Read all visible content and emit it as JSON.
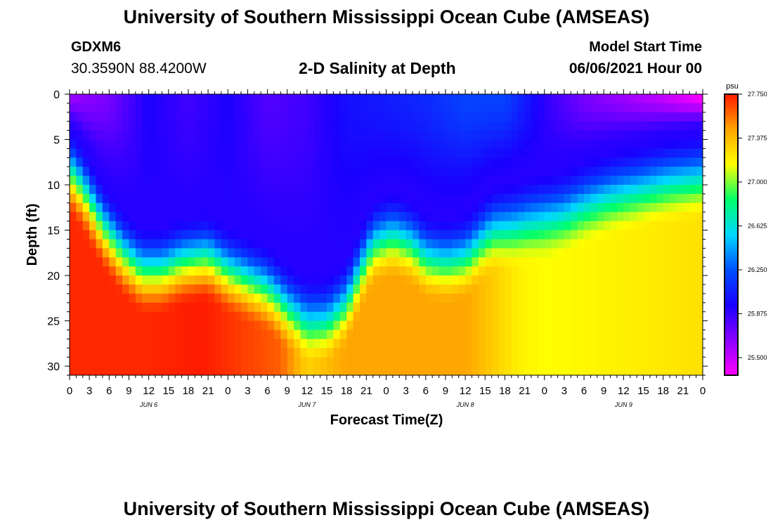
{
  "header": {
    "title": "University of Southern Mississippi Ocean Cube (AMSEAS)",
    "station_id": "GDXM6",
    "coords": "30.3590N  88.4200W",
    "plot_title": "2-D Salinity at Depth",
    "model_start_label": "Model Start Time",
    "model_start_value": "06/06/2021 Hour 00"
  },
  "footer": {
    "title": "University of Southern Mississippi Ocean Cube (AMSEAS)"
  },
  "colorbar": {
    "unit": "psu",
    "ticks": [
      "27.750",
      "27.375",
      "27.000",
      "26.625",
      "26.250",
      "25.875",
      "25.500"
    ],
    "range": [
      25.35,
      27.75
    ],
    "colors": [
      "#ff00ff",
      "#8a00ff",
      "#1a00ff",
      "#0050ff",
      "#00d8ff",
      "#00ff6a",
      "#ffff00",
      "#ffa500",
      "#ff1a00"
    ]
  },
  "chart_data": {
    "type": "heatmap",
    "title": "2-D Salinity at Depth",
    "xlabel": "Forecast Time(Z)",
    "ylabel": "Depth (ft)",
    "x_hours": [
      0,
      96
    ],
    "ylim": [
      31,
      0
    ],
    "x_tick_labels": [
      "0",
      "3",
      "6",
      "9",
      "12",
      "15",
      "18",
      "21",
      "0",
      "3",
      "6",
      "9",
      "12",
      "15",
      "18",
      "21",
      "0",
      "3",
      "6",
      "9",
      "12",
      "15",
      "18",
      "21",
      "0",
      "3",
      "6",
      "9",
      "12",
      "15",
      "18",
      "21",
      "0"
    ],
    "day_labels": [
      "JUN 6",
      "JUN 7",
      "JUN 8",
      "JUN 9"
    ],
    "y_ticks": [
      0,
      5,
      10,
      15,
      20,
      25,
      30
    ],
    "units": "psu",
    "halocline_depth_ft": {
      "hours": [
        0,
        2,
        5,
        8,
        11,
        14,
        17,
        21,
        24,
        27,
        30,
        33,
        36,
        39,
        42,
        44,
        46,
        49,
        52,
        54,
        57,
        60,
        64,
        67,
        69,
        72,
        75,
        78,
        82,
        85,
        88,
        91,
        96
      ],
      "depth": [
        10.5,
        12.5,
        16.5,
        19.5,
        21.5,
        21.5,
        20.5,
        20.0,
        21.5,
        22.5,
        23.5,
        25.5,
        27.0,
        27.0,
        25.0,
        21.5,
        18.5,
        17.5,
        18.5,
        20.0,
        20.5,
        20.0,
        17.0,
        16.5,
        16.0,
        15.5,
        15.0,
        14.0,
        13.0,
        12.5,
        12.0,
        11.5,
        11.0
      ]
    },
    "surface_salinity": {
      "hours": [
        0,
        6,
        12,
        18,
        24,
        30,
        36,
        42,
        48,
        54,
        60,
        66,
        72,
        78,
        84,
        90,
        96
      ],
      "values": [
        25.6,
        25.7,
        25.95,
        25.85,
        25.95,
        25.8,
        25.85,
        26.0,
        26.05,
        26.1,
        26.2,
        26.2,
        25.9,
        25.7,
        25.6,
        25.5,
        25.35
      ]
    },
    "bottom_salinity": {
      "hours": [
        0,
        12,
        20,
        24,
        32,
        36,
        42,
        48,
        60,
        68,
        72,
        84,
        96
      ],
      "values": [
        27.72,
        27.72,
        27.75,
        27.7,
        27.6,
        27.3,
        27.45,
        27.45,
        27.45,
        27.2,
        27.15,
        27.2,
        27.25
      ]
    }
  }
}
